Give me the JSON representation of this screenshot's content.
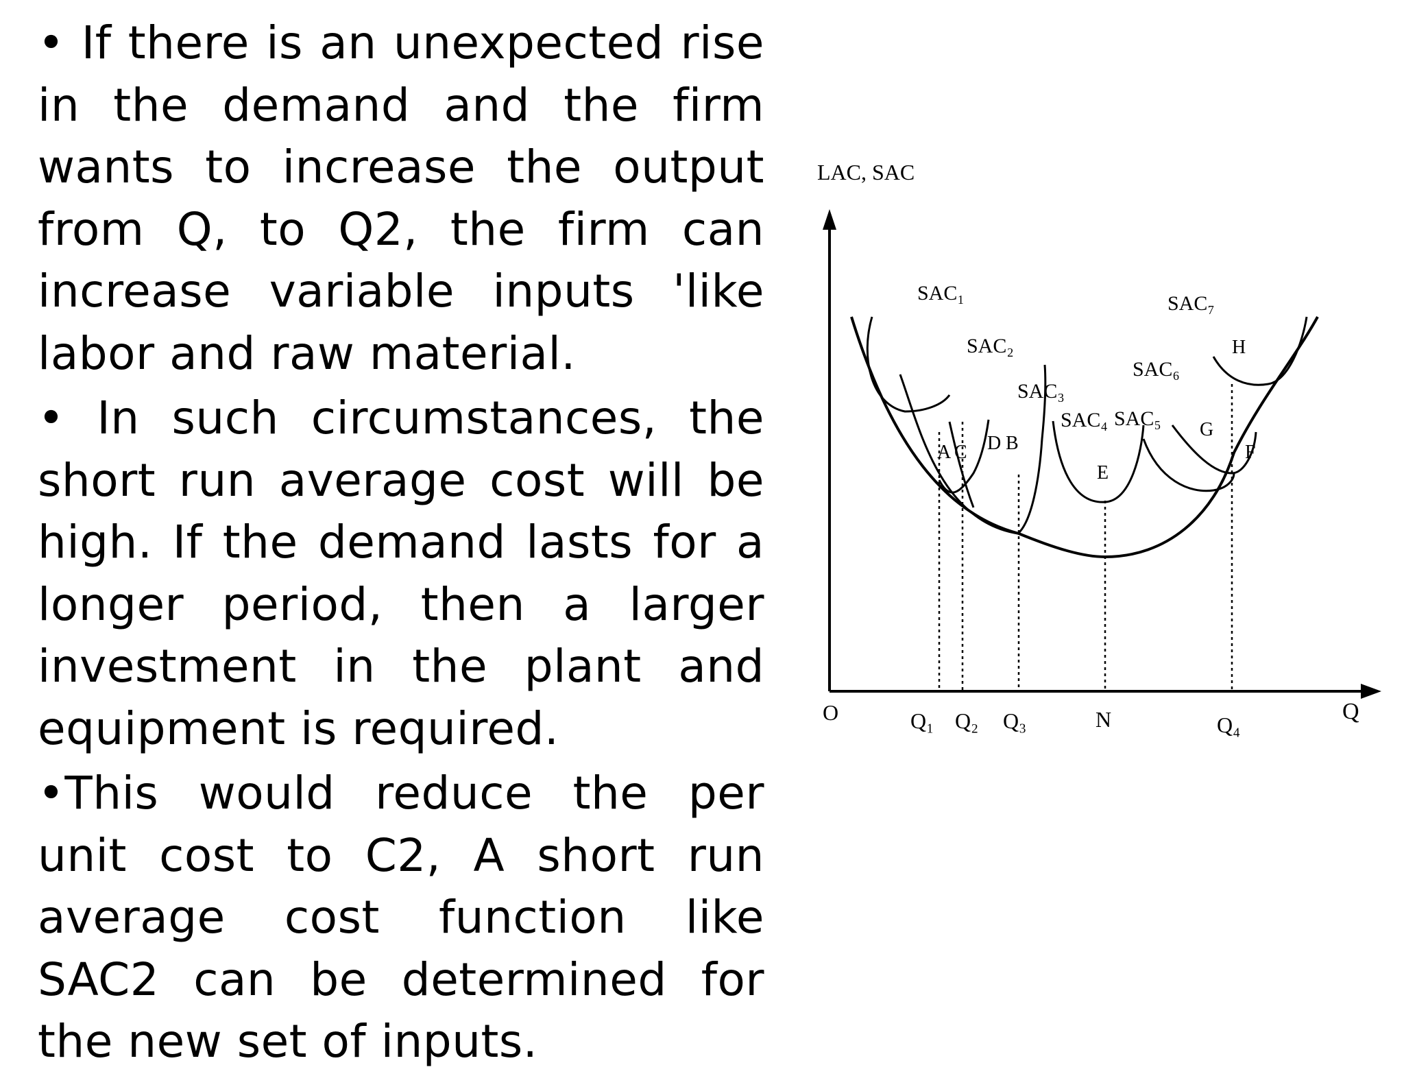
{
  "paragraphs": [
    "• If there is an unexpected rise in the demand and the firm wants to increase the output from Q, to Q2, the firm can increase variable inputs 'like labor and raw material.",
    "• In such circumstances, the short run average cost will be high. If the demand lasts for a longer period, then a larger investment in the plant and equipment is required.",
    "•This would reduce the per unit cost to C2, A short run average cost function like SAC2 can be determined for the new set of inputs."
  ],
  "diagram": {
    "y_axis_label": "LAC, SAC",
    "x_axis_label": "Q",
    "origin_label": "O",
    "x_ticks": [
      "Q₁",
      "Q₂",
      "Q₃",
      "N",
      "Q₄"
    ],
    "curve_labels": {
      "sac1": "SAC₁",
      "sac2": "SAC₂",
      "sac3": "SAC₃",
      "sac4": "SAC₄",
      "sac5": "SAC₅",
      "sac6": "SAC₆",
      "sac7": "SAC₇"
    },
    "point_labels": {
      "a": "A",
      "c": "C",
      "d": "D",
      "b": "B",
      "e": "E",
      "g": "G",
      "f": "F",
      "h": "H"
    },
    "line_color": "#000000"
  }
}
